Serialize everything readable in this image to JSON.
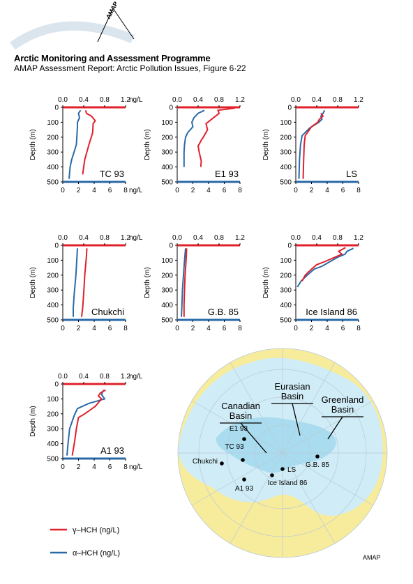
{
  "header": {
    "title": "Arctic Monitoring and Assessment Programme",
    "subtitle": "AMAP Assessment Report: Arctic Pollution Issues, Figure 6·22",
    "logo_text": "AMAP",
    "credit": "AMAP"
  },
  "colors": {
    "gamma": "#e0202a",
    "alpha": "#2a6aa8",
    "ocean": "#d0ecf6",
    "basin": "#a9dcef",
    "land": "#f7ec9c"
  },
  "chart_data": {
    "type": "line",
    "ylabel": "Depth (m)",
    "y_ticks": [
      0,
      100,
      200,
      300,
      400,
      500
    ],
    "ylim": [
      0,
      500
    ],
    "top_axis": {
      "ticks": [
        "0.0",
        "0.4",
        "0.8",
        "1.2"
      ],
      "unit": "ng/L",
      "range": [
        0,
        1.2
      ]
    },
    "bottom_axis": {
      "ticks": [
        "0",
        "2",
        "4",
        "6",
        "8"
      ],
      "unit": "ng/L",
      "range": [
        0,
        8
      ]
    },
    "legend": [
      {
        "label": "γ–HCH (ng/L)",
        "color": "#e0202a"
      },
      {
        "label": "α–HCH (ng/L)",
        "color": "#2a6aa8"
      }
    ],
    "panels": [
      {
        "id": "tc93",
        "name": "TC 93",
        "unit_top": true,
        "unit_bottom": true,
        "gamma": [
          [
            0.44,
            20
          ],
          [
            0.45,
            40
          ],
          [
            0.55,
            60
          ],
          [
            0.62,
            90
          ],
          [
            0.58,
            110
          ],
          [
            0.57,
            170
          ],
          [
            0.5,
            250
          ],
          [
            0.42,
            350
          ],
          [
            0.38,
            450
          ]
        ],
        "alpha": [
          [
            0.34,
            20
          ],
          [
            0.3,
            40
          ],
          [
            0.32,
            70
          ],
          [
            0.28,
            100
          ],
          [
            0.28,
            130
          ],
          [
            0.26,
            250
          ],
          [
            0.17,
            350
          ],
          [
            0.14,
            400
          ],
          [
            0.12,
            480
          ]
        ]
      },
      {
        "id": "e193",
        "name": "E1 93",
        "unit_top": false,
        "unit_bottom": false,
        "gamma": [
          [
            1.1,
            5
          ],
          [
            0.78,
            20
          ],
          [
            0.8,
            40
          ],
          [
            0.62,
            90
          ],
          [
            0.55,
            110
          ],
          [
            0.58,
            150
          ],
          [
            0.5,
            200
          ],
          [
            0.46,
            220
          ],
          [
            0.4,
            260
          ],
          [
            0.42,
            300
          ],
          [
            0.46,
            360
          ],
          [
            0.45,
            400
          ]
        ],
        "alpha": [
          [
            0.52,
            20
          ],
          [
            0.4,
            40
          ],
          [
            0.32,
            70
          ],
          [
            0.28,
            100
          ],
          [
            0.3,
            130
          ],
          [
            0.2,
            170
          ],
          [
            0.16,
            200
          ],
          [
            0.14,
            250
          ],
          [
            0.13,
            300
          ],
          [
            0.13,
            400
          ]
        ]
      },
      {
        "id": "ls",
        "name": "LS",
        "unit_top": false,
        "unit_bottom": false,
        "gamma": [
          [
            0.48,
            40
          ],
          [
            0.52,
            60
          ],
          [
            0.45,
            80
          ],
          [
            0.42,
            100
          ],
          [
            0.3,
            130
          ],
          [
            0.18,
            190
          ],
          [
            0.16,
            250
          ],
          [
            0.15,
            350
          ],
          [
            0.14,
            480
          ]
        ],
        "alpha": [
          [
            0.55,
            20
          ],
          [
            0.52,
            40
          ],
          [
            0.48,
            60
          ],
          [
            0.5,
            80
          ],
          [
            0.44,
            100
          ],
          [
            0.26,
            140
          ],
          [
            0.12,
            190
          ],
          [
            0.09,
            250
          ],
          [
            0.07,
            350
          ],
          [
            0.06,
            480
          ]
        ]
      },
      {
        "id": "chukchi",
        "name": "Chukchi",
        "unit_top": true,
        "unit_bottom": false,
        "gamma": [
          [
            0.46,
            20
          ],
          [
            0.45,
            80
          ],
          [
            0.42,
            200
          ],
          [
            0.4,
            320
          ],
          [
            0.38,
            420
          ],
          [
            0.36,
            480
          ]
        ],
        "alpha": [
          [
            0.28,
            20
          ],
          [
            0.27,
            80
          ],
          [
            0.25,
            200
          ],
          [
            0.22,
            320
          ],
          [
            0.2,
            420
          ],
          [
            0.2,
            480
          ]
        ]
      },
      {
        "id": "gb85",
        "name": "G.B. 85",
        "unit_top": false,
        "unit_bottom": false,
        "gamma": [
          [
            0.18,
            20
          ],
          [
            0.17,
            100
          ],
          [
            0.15,
            200
          ],
          [
            0.14,
            300
          ],
          [
            0.13,
            400
          ],
          [
            0.13,
            480
          ]
        ],
        "alpha": [
          [
            0.16,
            20
          ],
          [
            0.14,
            100
          ],
          [
            0.12,
            200
          ],
          [
            0.1,
            300
          ],
          [
            0.09,
            400
          ],
          [
            0.08,
            480
          ]
        ]
      },
      {
        "id": "ice86",
        "name": "Ice Island 86",
        "unit_top": false,
        "unit_bottom": false,
        "gamma": [
          [
            0.95,
            15
          ],
          [
            0.82,
            40
          ],
          [
            0.88,
            60
          ],
          [
            0.55,
            110
          ],
          [
            0.4,
            130
          ],
          [
            0.3,
            160
          ],
          [
            0.18,
            200
          ],
          [
            0.12,
            240
          ]
        ],
        "alpha": [
          [
            1.1,
            20
          ],
          [
            0.98,
            40
          ],
          [
            0.94,
            60
          ],
          [
            0.8,
            80
          ],
          [
            0.5,
            140
          ],
          [
            0.35,
            160
          ],
          [
            0.22,
            200
          ],
          [
            0.1,
            240
          ],
          [
            0.03,
            280
          ]
        ]
      },
      {
        "id": "a193",
        "name": "A1 93",
        "unit_top": true,
        "unit_bottom": true,
        "gamma": [
          [
            0.82,
            40
          ],
          [
            0.72,
            60
          ],
          [
            0.68,
            80
          ],
          [
            0.74,
            100
          ],
          [
            0.62,
            150
          ],
          [
            0.52,
            175
          ],
          [
            0.42,
            200
          ],
          [
            0.3,
            225
          ],
          [
            0.26,
            300
          ],
          [
            0.22,
            400
          ],
          [
            0.18,
            480
          ]
        ],
        "alpha": [
          [
            0.78,
            40
          ],
          [
            0.74,
            70
          ],
          [
            0.8,
            100
          ],
          [
            0.5,
            130
          ],
          [
            0.28,
            165
          ],
          [
            0.22,
            210
          ],
          [
            0.13,
            300
          ],
          [
            0.1,
            400
          ],
          [
            0.08,
            480
          ]
        ]
      }
    ]
  },
  "map": {
    "basin_labels": [
      {
        "line1": "Canadian",
        "line2": "Basin"
      },
      {
        "line1": "Eurasian",
        "line2": "Basin"
      },
      {
        "line1": "Greenland",
        "line2": "Basin"
      }
    ],
    "stations": [
      "E1 93",
      "TC 93",
      "Chukchi",
      "A1 93",
      "LS",
      "Ice Island 86",
      "G.B. 85"
    ]
  }
}
